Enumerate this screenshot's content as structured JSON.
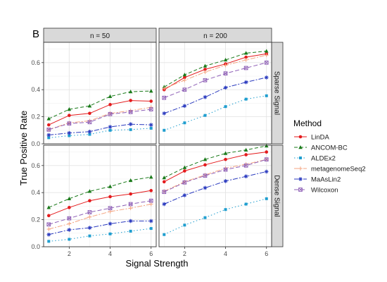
{
  "panel_label": "B",
  "chart_data": {
    "type": "line",
    "xlabel": "Signal Strength",
    "ylabel": "True Positive Rate",
    "x": [
      1,
      2,
      3,
      4,
      5,
      6
    ],
    "xticks": [
      2,
      4,
      6
    ],
    "xlim": [
      0.75,
      6.25
    ],
    "yticks": [
      0.0,
      0.2,
      0.4,
      0.6
    ],
    "ylim": [
      0.0,
      0.75
    ],
    "grid": true,
    "legend_title": "Method",
    "legend_position": "right",
    "columns": [
      "n = 50",
      "n = 200"
    ],
    "rows": [
      "Sparse Signal",
      "Dense Signal"
    ],
    "methods": [
      {
        "name": "LinDA",
        "color": "#e41a1c",
        "dash": "",
        "marker": "circle"
      },
      {
        "name": "ANCOM-BC",
        "color": "#1a7a1a",
        "dash": "5,3",
        "marker": "triangle"
      },
      {
        "name": "ALDEx2",
        "color": "#1f9ecf",
        "dash": "1.5,3",
        "marker": "square"
      },
      {
        "name": "metagenomeSeq2",
        "color": "#f4a582",
        "dash": "7,2,2,2",
        "marker": "plus"
      },
      {
        "name": "MaAsLin2",
        "color": "#2b3bbf",
        "dash": "7,2,2,2",
        "marker": "asterisk"
      },
      {
        "name": "Wilcoxon",
        "color": "#8e5fb6",
        "dash": "6,3",
        "marker": "square-x"
      }
    ],
    "panels": [
      {
        "row": 0,
        "col": 0,
        "series": {
          "LinDA": [
            0.14,
            0.21,
            0.225,
            0.29,
            0.32,
            0.315
          ],
          "ANCOM-BC": [
            0.185,
            0.255,
            0.28,
            0.35,
            0.385,
            0.39
          ],
          "ALDEx2": [
            0.045,
            0.06,
            0.07,
            0.1,
            0.105,
            0.115
          ],
          "metagenomeSeq2": [
            0.105,
            0.155,
            0.17,
            0.225,
            0.245,
            0.27
          ],
          "MaAsLin2": [
            0.065,
            0.08,
            0.09,
            0.125,
            0.145,
            0.14
          ],
          "Wilcoxon": [
            0.105,
            0.15,
            0.16,
            0.22,
            0.235,
            0.255
          ]
        }
      },
      {
        "row": 0,
        "col": 1,
        "series": {
          "LinDA": [
            0.4,
            0.49,
            0.55,
            0.59,
            0.64,
            0.665
          ],
          "ANCOM-BC": [
            0.42,
            0.51,
            0.575,
            0.62,
            0.67,
            0.685
          ],
          "ALDEx2": [
            0.1,
            0.155,
            0.21,
            0.275,
            0.33,
            0.355
          ],
          "metagenomeSeq2": [
            0.41,
            0.47,
            0.53,
            0.58,
            0.62,
            0.655
          ],
          "MaAsLin2": [
            0.225,
            0.28,
            0.345,
            0.415,
            0.455,
            0.49
          ],
          "Wilcoxon": [
            0.34,
            0.4,
            0.47,
            0.52,
            0.56,
            0.6
          ]
        }
      },
      {
        "row": 1,
        "col": 0,
        "series": {
          "LinDA": [
            0.23,
            0.29,
            0.34,
            0.37,
            0.39,
            0.415
          ],
          "ANCOM-BC": [
            0.29,
            0.355,
            0.41,
            0.445,
            0.49,
            0.515
          ],
          "ALDEx2": [
            0.04,
            0.055,
            0.08,
            0.095,
            0.115,
            0.135
          ],
          "metagenomeSeq2": [
            0.13,
            0.17,
            0.22,
            0.26,
            0.285,
            0.315
          ],
          "MaAsLin2": [
            0.09,
            0.125,
            0.14,
            0.17,
            0.19,
            0.19
          ],
          "Wilcoxon": [
            0.165,
            0.21,
            0.255,
            0.285,
            0.315,
            0.34
          ]
        }
      },
      {
        "row": 1,
        "col": 1,
        "series": {
          "LinDA": [
            0.48,
            0.56,
            0.605,
            0.645,
            0.68,
            0.7
          ],
          "ANCOM-BC": [
            0.51,
            0.585,
            0.645,
            0.69,
            0.715,
            0.745
          ],
          "ALDEx2": [
            0.09,
            0.16,
            0.215,
            0.275,
            0.315,
            0.355
          ],
          "metagenomeSeq2": [
            0.41,
            0.48,
            0.53,
            0.58,
            0.61,
            0.645
          ],
          "MaAsLin2": [
            0.315,
            0.38,
            0.435,
            0.485,
            0.52,
            0.555
          ],
          "Wilcoxon": [
            0.405,
            0.475,
            0.525,
            0.57,
            0.6,
            0.645
          ]
        }
      }
    ]
  }
}
